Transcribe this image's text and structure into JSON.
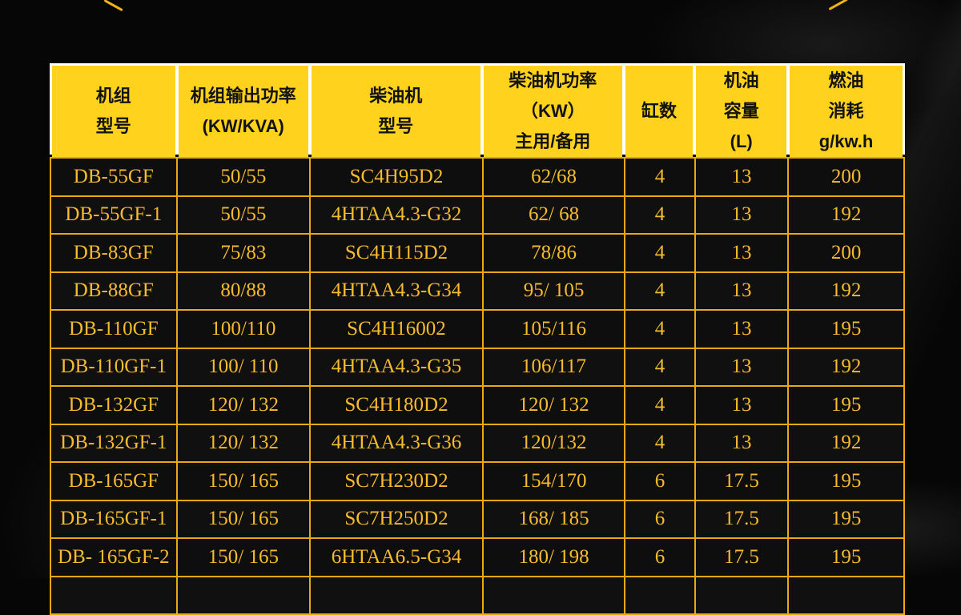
{
  "colors": {
    "page_bg": "#060606",
    "header_bg": "#FFD21D",
    "header_text": "#121212",
    "header_divider": "#FFFFFF",
    "body_border": "#E9A912",
    "body_text": "#F7BB2E"
  },
  "table": {
    "headers": [
      {
        "lines": [
          "机组",
          "型号"
        ]
      },
      {
        "lines": [
          "机组输出功率",
          "(KW/KVA)"
        ]
      },
      {
        "lines": [
          "柴油机",
          "型号"
        ]
      },
      {
        "lines": [
          "柴油机功率",
          "（KW）",
          "主用/备用"
        ]
      },
      {
        "lines": [
          "缸数"
        ]
      },
      {
        "lines": [
          "机油",
          "容量",
          "(L)"
        ]
      },
      {
        "lines": [
          "燃油",
          "消耗",
          "g/kw.h"
        ]
      }
    ],
    "rows": [
      [
        "DB-55GF",
        "50/55",
        "SC4H95D2",
        "62/68",
        "4",
        "13",
        "200"
      ],
      [
        "DB-55GF-1",
        "50/55",
        "4HTAA4.3-G32",
        "62/ 68",
        "4",
        "13",
        "192"
      ],
      [
        "DB-83GF",
        "75/83",
        "SC4H115D2",
        "78/86",
        "4",
        "13",
        "200"
      ],
      [
        "DB-88GF",
        "80/88",
        "4HTAA4.3-G34",
        "95/ 105",
        "4",
        "13",
        "192"
      ],
      [
        "DB-110GF",
        "100/110",
        "SC4H16002",
        "105/116",
        "4",
        "13",
        "195"
      ],
      [
        "DB-110GF-1",
        "100/ 110",
        "4HTAA4.3-G35",
        "106/117",
        "4",
        "13",
        "192"
      ],
      [
        "DB-132GF",
        "120/ 132",
        "SC4H180D2",
        "120/ 132",
        "4",
        "13",
        "195"
      ],
      [
        "DB-132GF-1",
        "120/ 132",
        "4HTAA4.3-G36",
        "120/132",
        "4",
        "13",
        "192"
      ],
      [
        "DB-165GF",
        "150/ 165",
        "SC7H230D2",
        "154/170",
        "6",
        "17.5",
        "195"
      ],
      [
        "DB-165GF-1",
        "150/ 165",
        "SC7H250D2",
        "168/ 185",
        "6",
        "17.5",
        "195"
      ],
      [
        "DB- 165GF-2",
        "150/ 165",
        "6HTAA6.5-G34",
        "180/ 198",
        "6",
        "17.5",
        "195"
      ]
    ]
  }
}
